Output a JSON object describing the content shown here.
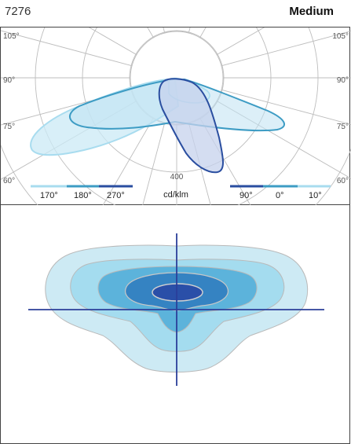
{
  "header": {
    "code": "7276",
    "distribution": "Medium"
  },
  "polar": {
    "angle_labels_left": [
      "105°",
      "90°",
      "75°",
      "60°"
    ],
    "angle_labels_right": [
      "105°",
      "90°",
      "75°",
      "60°"
    ],
    "radial_label": "400",
    "unit": "cd/klm",
    "legend_left": [
      "170°",
      "180°",
      "270°"
    ],
    "legend_right": [
      "90°",
      "0°",
      "10°"
    ]
  },
  "colors": {
    "pale": "#a8dcef",
    "mid": "#3d9cc4",
    "dark": "#2a4ea0",
    "iso_levels": [
      "#cdeaf4",
      "#a4dcef",
      "#5cb3db",
      "#3583c2",
      "#2a4fa8"
    ],
    "iso_axis": "#2b3f9a"
  }
}
